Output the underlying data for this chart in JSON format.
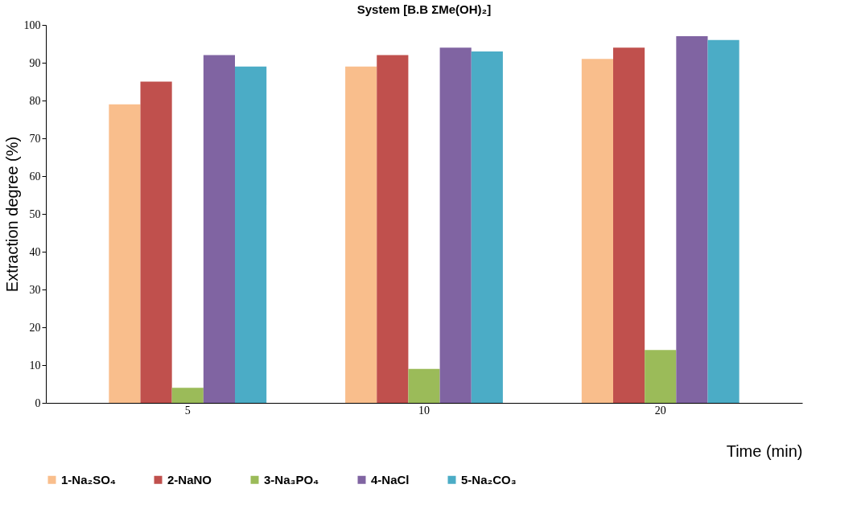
{
  "chart_data": {
    "type": "bar",
    "title": "System [B.B ΣMe(OH)₂]",
    "xlabel": "Time (min)",
    "ylabel": "Extraction degree (%)",
    "categories": [
      "5",
      "10",
      "20"
    ],
    "series": [
      {
        "name": "1-Na₂SO₄",
        "color": "#f9be8c",
        "values": [
          79,
          89,
          91
        ]
      },
      {
        "name": "2-NaNO",
        "color": "#c0504d",
        "values": [
          85,
          92,
          94
        ]
      },
      {
        "name": "3-Na₃PO₄",
        "color": "#9bbb59",
        "values": [
          4,
          9,
          14
        ]
      },
      {
        "name": "4-NaCl",
        "color": "#8064a2",
        "values": [
          92,
          94,
          97
        ]
      },
      {
        "name": "5-Na₂CO₃",
        "color": "#4bacc6",
        "values": [
          89,
          93,
          96
        ]
      }
    ],
    "ylim": [
      0,
      100
    ],
    "yticks": [
      0,
      10,
      20,
      30,
      40,
      50,
      60,
      70,
      80,
      90,
      100
    ],
    "grid": false,
    "legend": "bottom"
  }
}
